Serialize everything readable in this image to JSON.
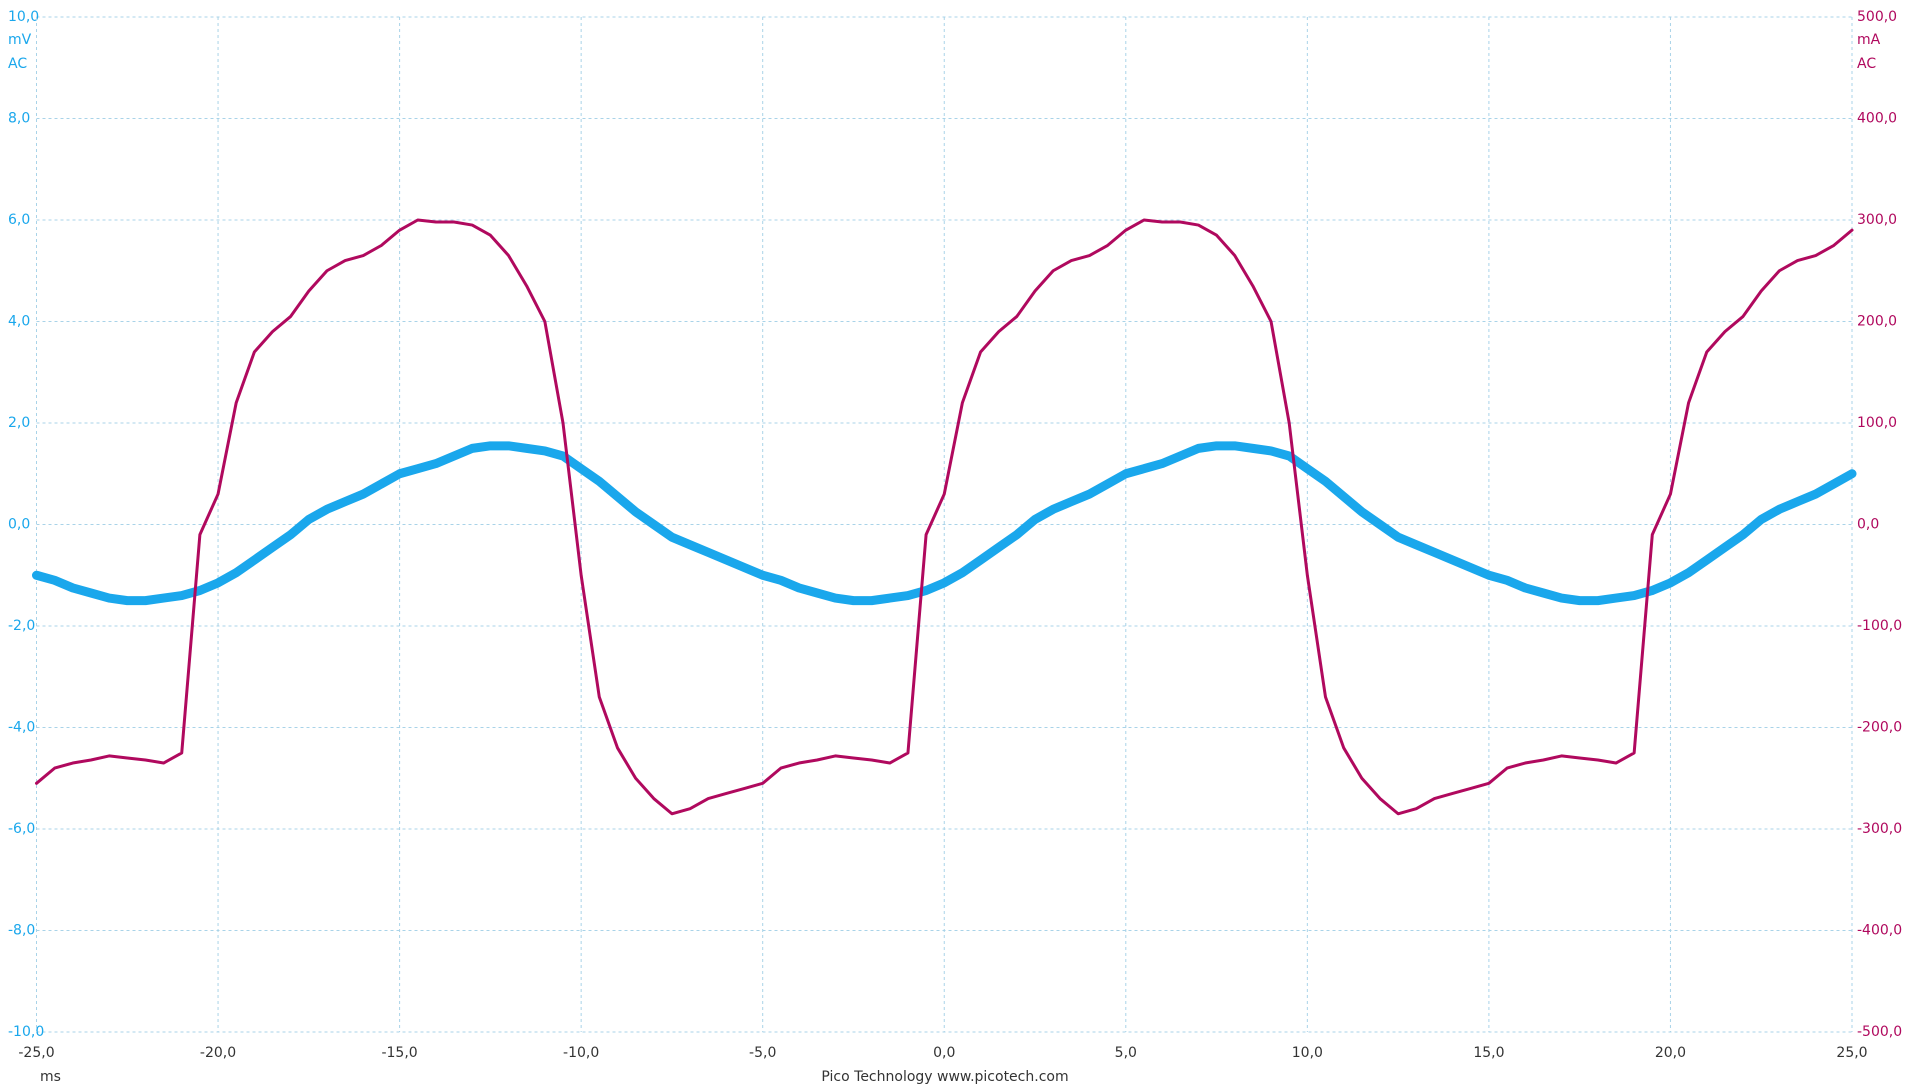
{
  "chart_data": {
    "type": "line",
    "y_unit": "mV",
    "y_coupling": "AC",
    "y2_unit": "mA",
    "y2_coupling": "AC",
    "x_unit": "ms",
    "footer": "Pico Technology  www.picotech.com",
    "grid": true,
    "xlim": [
      -25,
      25
    ],
    "ylim": [
      -10,
      10
    ],
    "y2lim": [
      -500,
      500
    ],
    "xticks": [
      {
        "value": -25,
        "label": "-25,0"
      },
      {
        "value": -20,
        "label": "-20,0"
      },
      {
        "value": -15,
        "label": "-15,0"
      },
      {
        "value": -10,
        "label": "-10,0"
      },
      {
        "value": -5,
        "label": "-5,0"
      },
      {
        "value": 0,
        "label": "0,0"
      },
      {
        "value": 5,
        "label": "5,0"
      },
      {
        "value": 10,
        "label": "10,0"
      },
      {
        "value": 15,
        "label": "15,0"
      },
      {
        "value": 20,
        "label": "20,0"
      },
      {
        "value": 25,
        "label": "25,0"
      }
    ],
    "yticks": [
      {
        "value": -10,
        "label": "-10,0"
      },
      {
        "value": -8,
        "label": "-8,0"
      },
      {
        "value": -6,
        "label": "-6,0"
      },
      {
        "value": -4,
        "label": "-4,0"
      },
      {
        "value": -2,
        "label": "-2,0"
      },
      {
        "value": 0,
        "label": "0,0"
      },
      {
        "value": 2,
        "label": "2,0"
      },
      {
        "value": 4,
        "label": "4,0"
      },
      {
        "value": 6,
        "label": "6,0"
      },
      {
        "value": 8,
        "label": "8,0"
      },
      {
        "value": 10,
        "label": "10,0"
      }
    ],
    "y2ticks": [
      {
        "value": -500,
        "label": "-500,0"
      },
      {
        "value": -400,
        "label": "-400,0"
      },
      {
        "value": -300,
        "label": "-300,0"
      },
      {
        "value": -200,
        "label": "-200,0"
      },
      {
        "value": -100,
        "label": "-100,0"
      },
      {
        "value": 0,
        "label": "0,0"
      },
      {
        "value": 100,
        "label": "100,0"
      },
      {
        "value": 200,
        "label": "200,0"
      },
      {
        "value": 300,
        "label": "300,0"
      },
      {
        "value": 400,
        "label": "400,0"
      },
      {
        "value": 500,
        "label": "500,0"
      }
    ],
    "y_color": "#1aa7ec",
    "y2_color": "#b0095e",
    "x": [
      -25,
      -24.5,
      -24,
      -23.5,
      -23,
      -22.5,
      -22,
      -21.5,
      -21,
      -20.5,
      -20,
      -19.5,
      -19,
      -18.5,
      -18,
      -17.5,
      -17,
      -16.5,
      -16,
      -15.5,
      -15,
      -14.5,
      -14,
      -13.5,
      -13,
      -12.5,
      -12,
      -11.5,
      -11,
      -10.5,
      -10,
      -9.5,
      -9,
      -8.5,
      -8,
      -7.5,
      -7,
      -6.5,
      -6,
      -5.5,
      -5,
      -4.5,
      -4,
      -3.5,
      -3,
      -2.5,
      -2,
      -1.5,
      -1,
      -0.5,
      0,
      0.5,
      1,
      1.5,
      2,
      2.5,
      3,
      3.5,
      4,
      4.5,
      5,
      5.5,
      6,
      6.5,
      7,
      7.5,
      8,
      8.5,
      9,
      9.5,
      10,
      10.5,
      11,
      11.5,
      12,
      12.5,
      13,
      13.5,
      14,
      14.5,
      15,
      15.5,
      16,
      16.5,
      17,
      17.5,
      18,
      18.5,
      19,
      19.5,
      20,
      20.5,
      21,
      21.5,
      22,
      22.5,
      23,
      23.5,
      24,
      24.5,
      25
    ],
    "series": [
      {
        "color": "#1aa7ec",
        "width": 9,
        "values": [
          -1.0,
          -1.1,
          -1.25,
          -1.35,
          -1.45,
          -1.5,
          -1.5,
          -1.45,
          -1.4,
          -1.3,
          -1.15,
          -0.95,
          -0.7,
          -0.45,
          -0.2,
          0.1,
          0.3,
          0.45,
          0.6,
          0.8,
          1.0,
          1.1,
          1.2,
          1.35,
          1.5,
          1.55,
          1.55,
          1.5,
          1.45,
          1.35,
          1.1,
          0.85,
          0.55,
          0.25,
          0.0,
          -0.25,
          -0.4,
          -0.55,
          -0.7,
          -0.85,
          -1.0,
          -1.1,
          -1.25,
          -1.35,
          -1.45,
          -1.5,
          -1.5,
          -1.45,
          -1.4,
          -1.3,
          -1.15,
          -0.95,
          -0.7,
          -0.45,
          -0.2,
          0.1,
          0.3,
          0.45,
          0.6,
          0.8,
          1.0,
          1.1,
          1.2,
          1.35,
          1.5,
          1.55,
          1.55,
          1.5,
          1.45,
          1.35,
          1.1,
          0.85,
          0.55,
          0.25,
          0.0,
          -0.25,
          -0.4,
          -0.55,
          -0.7,
          -0.85,
          -1.0,
          -1.1,
          -1.25,
          -1.35,
          -1.45,
          -1.5,
          -1.5,
          -1.45,
          -1.4,
          -1.3,
          -1.15,
          -0.95,
          -0.7,
          -0.45,
          -0.2,
          0.1,
          0.3,
          0.45,
          0.6,
          0.8,
          1.0
        ]
      },
      {
        "color": "#b0095e",
        "width": 3,
        "axis": "y2",
        "values": [
          -255,
          -240,
          -235,
          -232,
          -228,
          -230,
          -232,
          -235,
          -225,
          -10,
          30,
          120,
          170,
          190,
          205,
          230,
          250,
          260,
          265,
          275,
          290,
          300,
          298,
          298,
          295,
          285,
          265,
          235,
          200,
          100,
          -50,
          -170,
          -220,
          -250,
          -270,
          -285,
          -280,
          -270,
          -265,
          -260,
          -255,
          -240,
          -235,
          -232,
          -228,
          -230,
          -232,
          -235,
          -225,
          -10,
          30,
          120,
          170,
          190,
          205,
          230,
          250,
          260,
          265,
          275,
          290,
          300,
          298,
          298,
          295,
          285,
          265,
          235,
          200,
          100,
          -50,
          -170,
          -220,
          -250,
          -270,
          -285,
          -280,
          -270,
          -265,
          -260,
          -255,
          -240,
          -235,
          -232,
          -228,
          -230,
          -232,
          -235,
          -225,
          -10,
          30,
          120,
          170,
          190,
          205,
          230,
          250,
          260,
          265,
          275,
          290
        ]
      }
    ]
  }
}
